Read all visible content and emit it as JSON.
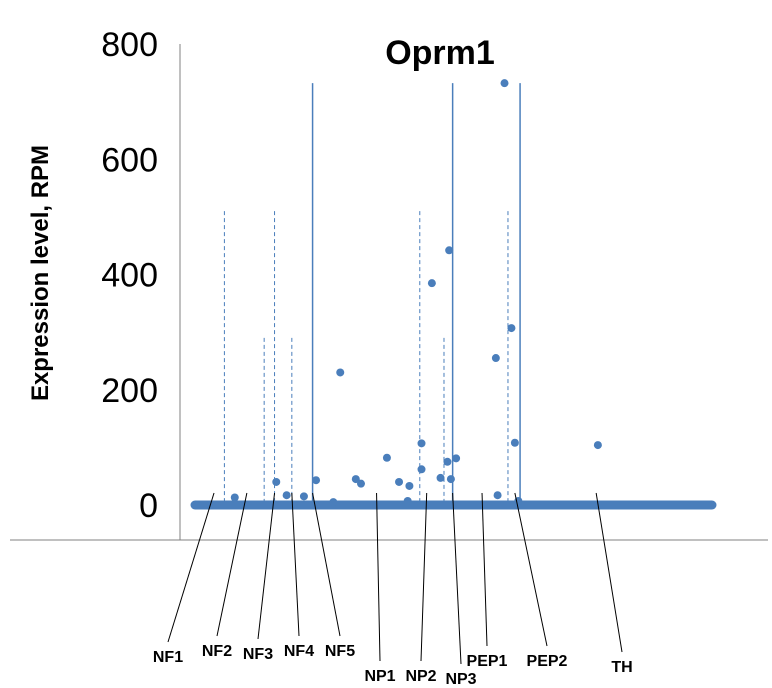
{
  "chart_data": {
    "type": "scatter",
    "title": "Oprm1",
    "ylabel": "Expression level, RPM",
    "xlabel": "",
    "ylim": [
      0,
      800
    ],
    "yticks": [
      0,
      200,
      400,
      600,
      800
    ],
    "legend": "none",
    "grid": false,
    "n_cells": 300,
    "marker_color": "#4a7ebb",
    "line_color": "#4a7ebb",
    "axis_color": "#808080",
    "nonzero_points": [
      {
        "cell": 23,
        "value": 13
      },
      {
        "cell": 47,
        "value": 40
      },
      {
        "cell": 53,
        "value": 17
      },
      {
        "cell": 63,
        "value": 15
      },
      {
        "cell": 70,
        "value": 43
      },
      {
        "cell": 80,
        "value": 5
      },
      {
        "cell": 84,
        "value": 230
      },
      {
        "cell": 93,
        "value": 45
      },
      {
        "cell": 96,
        "value": 37
      },
      {
        "cell": 111,
        "value": 82
      },
      {
        "cell": 118,
        "value": 40
      },
      {
        "cell": 123,
        "value": 7
      },
      {
        "cell": 124,
        "value": 33
      },
      {
        "cell": 131,
        "value": 107
      },
      {
        "cell": 131,
        "value": 62
      },
      {
        "cell": 137,
        "value": 385
      },
      {
        "cell": 142,
        "value": 47
      },
      {
        "cell": 146,
        "value": 75
      },
      {
        "cell": 147,
        "value": 442
      },
      {
        "cell": 148,
        "value": 45
      },
      {
        "cell": 151,
        "value": 81
      },
      {
        "cell": 174,
        "value": 255
      },
      {
        "cell": 175,
        "value": 17
      },
      {
        "cell": 179,
        "value": 732
      },
      {
        "cell": 183,
        "value": 307
      },
      {
        "cell": 185,
        "value": 108
      },
      {
        "cell": 187,
        "value": 7
      },
      {
        "cell": 233,
        "value": 104
      }
    ],
    "group_boundaries": [
      {
        "cell": 17,
        "top": 510,
        "style": "dashed"
      },
      {
        "cell": 46,
        "top": 510,
        "style": "dashed"
      },
      {
        "cell": 40,
        "top": 290,
        "style": "dashed"
      },
      {
        "cell": 56,
        "top": 290,
        "style": "dashed"
      },
      {
        "cell": 68,
        "top": 732,
        "style": "solid"
      },
      {
        "cell": 130,
        "top": 510,
        "style": "dashed"
      },
      {
        "cell": 144,
        "top": 290,
        "style": "dashed"
      },
      {
        "cell": 149,
        "top": 732,
        "style": "solid"
      },
      {
        "cell": 181,
        "top": 510,
        "style": "dashed"
      },
      {
        "cell": 188,
        "top": 732,
        "style": "solid"
      }
    ],
    "group_labels": [
      {
        "name": "NF1",
        "cell": 11
      },
      {
        "name": "NF2",
        "cell": 30
      },
      {
        "name": "NF3",
        "cell": 46
      },
      {
        "name": "NF4",
        "cell": 56
      },
      {
        "name": "NF5",
        "cell": 68
      },
      {
        "name": "NP1",
        "cell": 105
      },
      {
        "name": "NP2",
        "cell": 134
      },
      {
        "name": "NP3",
        "cell": 149
      },
      {
        "name": "PEP1",
        "cell": 166
      },
      {
        "name": "PEP2",
        "cell": 185
      },
      {
        "name": "TH",
        "cell": 232
      }
    ]
  }
}
